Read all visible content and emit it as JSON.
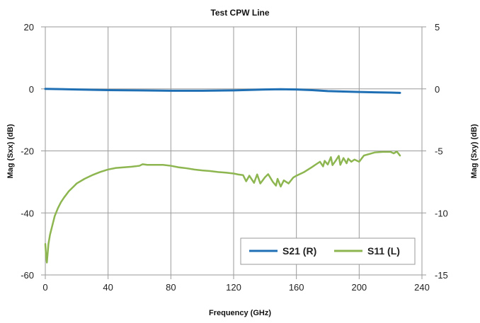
{
  "chart_data": {
    "type": "line",
    "title": "Test CPW Line",
    "xlabel": "Frequency (GHz)",
    "ylabel_left": "Mag (Sxx) (dB)",
    "ylabel_right": "Mag (Sxy) (dB)",
    "xlim": [
      0,
      240
    ],
    "ylim_left": [
      -60,
      20
    ],
    "ylim_right": [
      -15,
      5
    ],
    "x_ticks": [
      "0",
      "40",
      "80",
      "120",
      "160",
      "200",
      "240"
    ],
    "y_left_ticks": [
      "20",
      "0",
      "-20",
      "-40",
      "-60"
    ],
    "y_right_ticks": [
      "5",
      "0",
      "-5",
      "-10",
      "-15"
    ],
    "grid": true,
    "legend_position": "bottom-right",
    "series": [
      {
        "name": "S21 (R)",
        "axis": "right",
        "color": "#1f6fb4",
        "x": [
          0,
          10,
          20,
          40,
          60,
          80,
          100,
          120,
          140,
          150,
          160,
          170,
          180,
          200,
          210,
          220,
          226
        ],
        "y": [
          0,
          -0.02,
          -0.05,
          -0.1,
          -0.12,
          -0.15,
          -0.15,
          -0.12,
          -0.05,
          -0.03,
          -0.05,
          -0.1,
          -0.18,
          -0.25,
          -0.28,
          -0.3,
          -0.32
        ]
      },
      {
        "name": "S11 (L)",
        "axis": "left",
        "color": "#8db650",
        "x": [
          0,
          0.5,
          1,
          1.5,
          2,
          3,
          4,
          5,
          6,
          8,
          10,
          12,
          15,
          18,
          20,
          25,
          30,
          35,
          40,
          45,
          50,
          55,
          60,
          62,
          65,
          70,
          75,
          80,
          85,
          90,
          95,
          100,
          105,
          110,
          115,
          120,
          123,
          126,
          128,
          130,
          133,
          135,
          137,
          140,
          142,
          145,
          147,
          148,
          150,
          152,
          155,
          158,
          160,
          165,
          170,
          172,
          175,
          177,
          178,
          180,
          182,
          183,
          185,
          187,
          188,
          190,
          192,
          193,
          195,
          197,
          200,
          203,
          205,
          210,
          215,
          220,
          222,
          224,
          226
        ],
        "y": [
          -50,
          -54,
          -56,
          -53,
          -50,
          -47,
          -45,
          -43,
          -41,
          -38.5,
          -36.5,
          -35,
          -33,
          -31.5,
          -30.5,
          -29,
          -27.8,
          -26.8,
          -26,
          -25.5,
          -25.3,
          -25.1,
          -24.8,
          -24.3,
          -24.5,
          -24.5,
          -24.5,
          -24.8,
          -25.3,
          -25.6,
          -26,
          -26.3,
          -26.5,
          -26.8,
          -27,
          -27.3,
          -27.6,
          -27.8,
          -29.8,
          -28,
          -30.3,
          -27.6,
          -30.5,
          -28.5,
          -27.5,
          -30,
          -31.2,
          -29,
          -31.5,
          -29.5,
          -30.5,
          -28.6,
          -28,
          -26.8,
          -25.2,
          -24.5,
          -23.5,
          -25,
          -23.2,
          -24.4,
          -22,
          -24.6,
          -23.2,
          -21.6,
          -24.5,
          -22.3,
          -24,
          -22.5,
          -23.5,
          -22.8,
          -23.5,
          -21.5,
          -21.2,
          -20.5,
          -20.3,
          -20.3,
          -20.8,
          -20.2,
          -21.5
        ]
      }
    ]
  }
}
